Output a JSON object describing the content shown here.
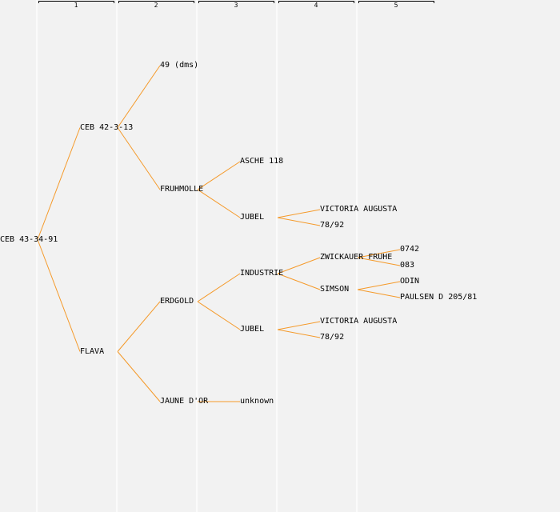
{
  "generations": [
    "1",
    "2",
    "3",
    "4",
    "5"
  ],
  "colors": {
    "background": "#f2f2f2",
    "edge": "#f59a2a",
    "text": "#000000"
  },
  "root": {
    "label": "CEB 43-34-91",
    "children": [
      {
        "label": "CEB 42-3-13",
        "children": [
          {
            "label": "49 (dms)"
          },
          {
            "label": "FRUHMOLLE",
            "children": [
              {
                "label": "ASCHE 118"
              },
              {
                "label": "JUBEL",
                "children": [
                  {
                    "label": "VICTORIA AUGUSTA"
                  },
                  {
                    "label": "78/92"
                  }
                ]
              }
            ]
          }
        ]
      },
      {
        "label": "FLAVA",
        "children": [
          {
            "label": "ERDGOLD",
            "children": [
              {
                "label": "INDUSTRIE",
                "children": [
                  {
                    "label": "ZWICKAUER FRUHE",
                    "children": [
                      {
                        "label": "0742"
                      },
                      {
                        "label": "083"
                      }
                    ]
                  },
                  {
                    "label": "SIMSON",
                    "children": [
                      {
                        "label": "ODIN"
                      },
                      {
                        "label": "PAULSEN D 205/81"
                      }
                    ]
                  }
                ]
              },
              {
                "label": "JUBEL",
                "children": [
                  {
                    "label": "VICTORIA AUGUSTA"
                  },
                  {
                    "label": "78/92"
                  }
                ]
              }
            ]
          },
          {
            "label": "JAUNE D'OR",
            "children": [
              {
                "label": "unknown"
              }
            ]
          }
        ]
      }
    ]
  }
}
